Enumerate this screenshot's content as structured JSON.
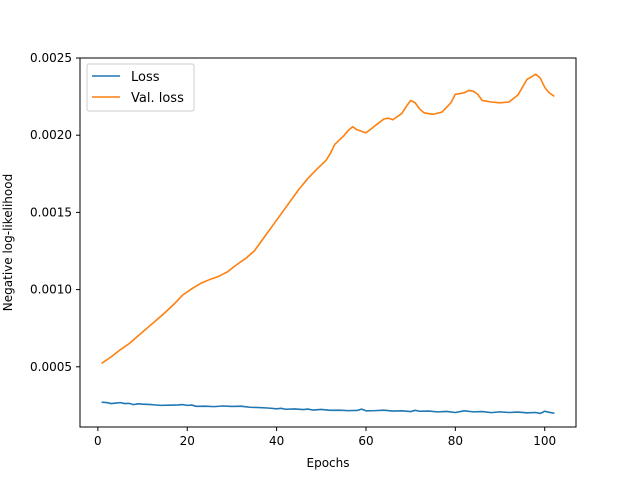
{
  "chart_data": {
    "type": "line",
    "title": "",
    "xlabel": "Epochs",
    "ylabel": "Negative log-likelihood",
    "xlim": [
      -4,
      107
    ],
    "ylim": [
      0.00011,
      0.0025
    ],
    "xticks": [
      0,
      20,
      40,
      60,
      80,
      100
    ],
    "yticks": [
      0.0005,
      0.001,
      0.0015,
      0.002,
      0.0025
    ],
    "ytick_labels": [
      "0.0005",
      "0.0010",
      "0.0015",
      "0.0020",
      "0.0025"
    ],
    "grid": false,
    "legend": "top-left",
    "series": [
      {
        "name": "Loss",
        "color": "#1f77b4",
        "points": [
          [
            1,
            0.00027
          ],
          [
            2,
            0.000268
          ],
          [
            3,
            0.000262
          ],
          [
            4,
            0.000265
          ],
          [
            5,
            0.000268
          ],
          [
            6,
            0.000262
          ],
          [
            7,
            0.000263
          ],
          [
            8,
            0.000255
          ],
          [
            9,
            0.00026
          ],
          [
            10,
            0.000258
          ],
          [
            12,
            0.000255
          ],
          [
            14,
            0.00025
          ],
          [
            16,
            0.000251
          ],
          [
            18,
            0.000253
          ],
          [
            19,
            0.000255
          ],
          [
            20,
            0.00025
          ],
          [
            21,
            0.000252
          ],
          [
            22,
            0.000244
          ],
          [
            24,
            0.000245
          ],
          [
            26,
            0.000242
          ],
          [
            28,
            0.000246
          ],
          [
            30,
            0.000243
          ],
          [
            32,
            0.000245
          ],
          [
            34,
            0.000238
          ],
          [
            36,
            0.000236
          ],
          [
            38,
            0.000233
          ],
          [
            40,
            0.000228
          ],
          [
            41,
            0.000231
          ],
          [
            42,
            0.000225
          ],
          [
            44,
            0.000227
          ],
          [
            46,
            0.000223
          ],
          [
            47,
            0.000226
          ],
          [
            48,
            0.00022
          ],
          [
            50,
            0.000224
          ],
          [
            52,
            0.000218
          ],
          [
            54,
            0.000219
          ],
          [
            56,
            0.000216
          ],
          [
            58,
            0.000217
          ],
          [
            59,
            0.000226
          ],
          [
            60,
            0.000215
          ],
          [
            62,
            0.000216
          ],
          [
            64,
            0.000219
          ],
          [
            66,
            0.000213
          ],
          [
            68,
            0.000215
          ],
          [
            70,
            0.00021
          ],
          [
            71,
            0.000218
          ],
          [
            72,
            0.000212
          ],
          [
            74,
            0.000213
          ],
          [
            76,
            0.000208
          ],
          [
            78,
            0.000211
          ],
          [
            80,
            0.000204
          ],
          [
            82,
            0.000215
          ],
          [
            84,
            0.000208
          ],
          [
            86,
            0.00021
          ],
          [
            88,
            0.000203
          ],
          [
            90,
            0.000208
          ],
          [
            92,
            0.000204
          ],
          [
            94,
            0.000207
          ],
          [
            96,
            0.000202
          ],
          [
            98,
            0.000204
          ],
          [
            99,
            0.000198
          ],
          [
            100,
            0.000212
          ],
          [
            101,
            0.000205
          ],
          [
            102,
            0.0002
          ]
        ]
      },
      {
        "name": "Val. loss",
        "color": "#ff7f0e",
        "points": [
          [
            1,
            0.000525
          ],
          [
            3,
            0.000565
          ],
          [
            5,
            0.00061
          ],
          [
            7,
            0.00065
          ],
          [
            9,
            0.0007
          ],
          [
            11,
            0.00075
          ],
          [
            13,
            0.0008
          ],
          [
            15,
            0.00085
          ],
          [
            17,
            0.000905
          ],
          [
            19,
            0.000965
          ],
          [
            21,
            0.001005
          ],
          [
            23,
            0.00104
          ],
          [
            25,
            0.001065
          ],
          [
            27,
            0.001085
          ],
          [
            29,
            0.001115
          ],
          [
            31,
            0.00116
          ],
          [
            33,
            0.0012
          ],
          [
            35,
            0.00125
          ],
          [
            37,
            0.00133
          ],
          [
            39,
            0.00141
          ],
          [
            41,
            0.00149
          ],
          [
            43,
            0.00157
          ],
          [
            45,
            0.00165
          ],
          [
            47,
            0.00172
          ],
          [
            49,
            0.00178
          ],
          [
            51,
            0.001835
          ],
          [
            52,
            0.00188
          ],
          [
            53,
            0.00194
          ],
          [
            55,
            0.001995
          ],
          [
            56,
            0.00203
          ],
          [
            57,
            0.002055
          ],
          [
            58,
            0.002035
          ],
          [
            60,
            0.002015
          ],
          [
            62,
            0.00206
          ],
          [
            64,
            0.002105
          ],
          [
            65,
            0.00211
          ],
          [
            66,
            0.0021
          ],
          [
            68,
            0.00214
          ],
          [
            69,
            0.002185
          ],
          [
            70,
            0.002225
          ],
          [
            71,
            0.00221
          ],
          [
            72,
            0.00217
          ],
          [
            73,
            0.002145
          ],
          [
            75,
            0.002135
          ],
          [
            77,
            0.00215
          ],
          [
            79,
            0.00221
          ],
          [
            80,
            0.002265
          ],
          [
            82,
            0.002275
          ],
          [
            83,
            0.00229
          ],
          [
            84,
            0.002285
          ],
          [
            85,
            0.002265
          ],
          [
            86,
            0.002225
          ],
          [
            88,
            0.002215
          ],
          [
            90,
            0.00221
          ],
          [
            92,
            0.002215
          ],
          [
            94,
            0.00226
          ],
          [
            96,
            0.00236
          ],
          [
            98,
            0.002395
          ],
          [
            99,
            0.00237
          ],
          [
            100,
            0.00231
          ],
          [
            101,
            0.002275
          ],
          [
            102,
            0.002255
          ]
        ]
      }
    ]
  }
}
